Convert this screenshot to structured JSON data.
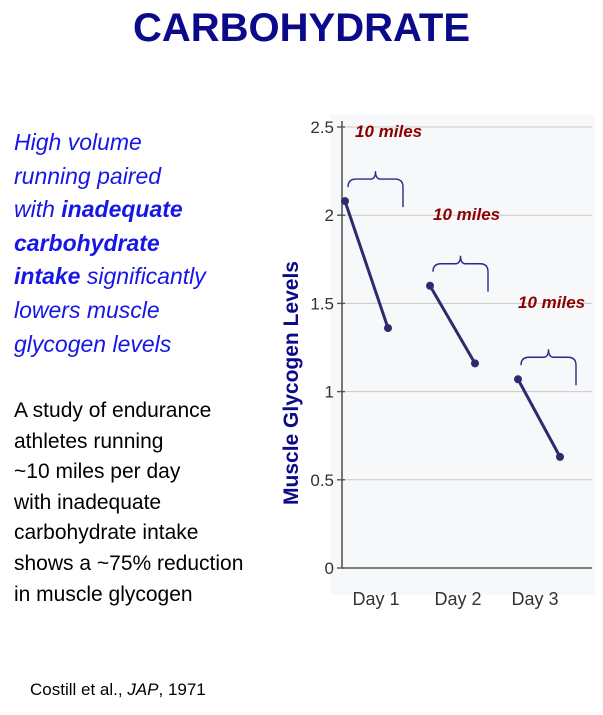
{
  "title": "CARBOHYDRATE",
  "blue_text_lines": [
    [
      {
        "t": "High volume",
        "b": false
      }
    ],
    [
      {
        "t": "running paired",
        "b": false
      }
    ],
    [
      {
        "t": "with ",
        "b": false
      },
      {
        "t": "inadequate",
        "b": true
      }
    ],
    [
      {
        "t": "carbohydrate",
        "b": true
      }
    ],
    [
      {
        "t": "intake",
        "b": true
      },
      {
        "t": " significantly",
        "b": false
      }
    ],
    [
      {
        "t": "lowers muscle",
        "b": false
      }
    ],
    [
      {
        "t": "glycogen levels",
        "b": false
      }
    ]
  ],
  "body_lines": [
    "A study of endurance",
    "athletes running",
    "~10 miles per day",
    "with inadequate",
    "carbohydrate intake",
    "shows a ~75% reduction",
    "in muscle glycogen"
  ],
  "citation": {
    "authors": "Costill et al., ",
    "journal": "JAP",
    "year": ", 1971"
  },
  "colors": {
    "title": "#0a0a8a",
    "blue_text": "#1616e6",
    "annotation": "#8b0000",
    "series": "#2b2b6e",
    "grid": "#c8c8c8"
  },
  "chart_data": {
    "type": "line",
    "ylabel": "Muscle Glycogen Levels",
    "xlabel": "",
    "categories": [
      "Day 1",
      "Day 2",
      "Day 3"
    ],
    "ylim": [
      0,
      2.5
    ],
    "yticks": [
      "0",
      "0.5",
      "1",
      "1.5",
      "2",
      "2.5"
    ],
    "grid": true,
    "segments": [
      {
        "day": "Day 1",
        "start": 2.08,
        "end": 1.36,
        "annotation": "10 miles"
      },
      {
        "day": "Day 2",
        "start": 1.6,
        "end": 1.16,
        "annotation": "10 miles"
      },
      {
        "day": "Day 3",
        "start": 1.07,
        "end": 0.63,
        "annotation": "10 miles"
      }
    ]
  }
}
